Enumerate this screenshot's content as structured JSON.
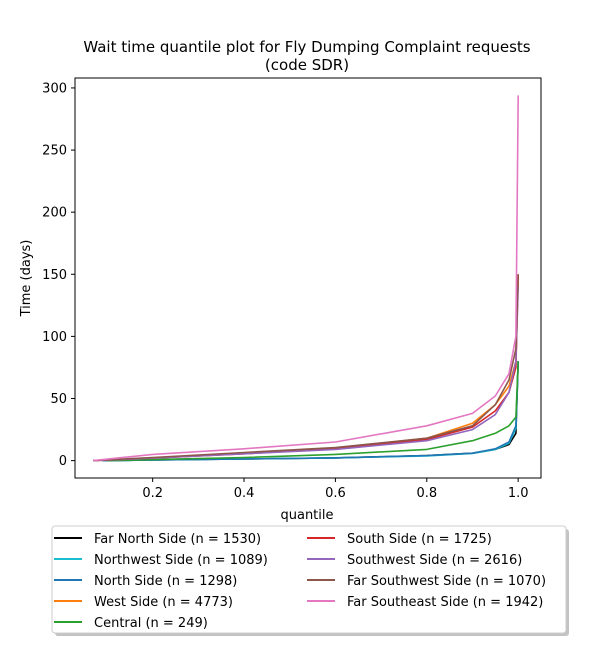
{
  "chart_data": {
    "type": "line",
    "title": "Wait time quantile plot for Fly Dumping Complaint  requests",
    "subtitle": "(code SDR)",
    "xlabel": "quantile",
    "ylabel": "Time (days)",
    "xlim": [
      0.03,
      1.05
    ],
    "ylim": [
      -14,
      308
    ],
    "xticks": [
      "0.2",
      "0.4",
      "0.6",
      "0.8",
      "1.0"
    ],
    "xtick_values": [
      0.2,
      0.4,
      0.6,
      0.8,
      1.0
    ],
    "yticks": [
      "0",
      "50",
      "100",
      "150",
      "200",
      "250",
      "300"
    ],
    "ytick_values": [
      0,
      50,
      100,
      150,
      200,
      250,
      300
    ],
    "grid": false,
    "legend_position": "below",
    "series": [
      {
        "name": "Far North Side (n = 1530)",
        "color": "#000000",
        "x": [
          0.09,
          0.2,
          0.4,
          0.6,
          0.8,
          0.9,
          0.95,
          0.98,
          0.995,
          1.0
        ],
        "y": [
          0,
          0.5,
          1.3,
          2.2,
          4,
          6,
          9,
          13,
          22,
          80
        ]
      },
      {
        "name": "Northwest Side (n = 1089)",
        "color": "#17becf",
        "x": [
          0.09,
          0.2,
          0.4,
          0.6,
          0.8,
          0.9,
          0.95,
          0.98,
          0.995,
          1.0
        ],
        "y": [
          0,
          0.5,
          1.3,
          2.2,
          3.8,
          5.8,
          9,
          14,
          26,
          80
        ]
      },
      {
        "name": "North Side (n = 1298)",
        "color": "#1f77b4",
        "x": [
          0.09,
          0.2,
          0.4,
          0.6,
          0.8,
          0.9,
          0.95,
          0.98,
          0.995,
          1.0
        ],
        "y": [
          0,
          0.5,
          1.3,
          2.3,
          4,
          6,
          9.5,
          15,
          28,
          80
        ]
      },
      {
        "name": "West Side (n = 4773)",
        "color": "#ff7f0e",
        "x": [
          0.07,
          0.2,
          0.4,
          0.6,
          0.8,
          0.9,
          0.95,
          0.98,
          0.995,
          1.0
        ],
        "y": [
          0,
          2,
          6,
          10,
          18,
          30,
          45,
          60,
          80,
          150
        ]
      },
      {
        "name": "Central (n = 249)",
        "color": "#2ca02c",
        "x": [
          0.1,
          0.2,
          0.4,
          0.6,
          0.8,
          0.9,
          0.95,
          0.98,
          0.995,
          1.0
        ],
        "y": [
          0,
          0.8,
          2.5,
          5,
          9,
          16,
          22,
          28,
          35,
          80
        ]
      },
      {
        "name": "South Side (n = 1725)",
        "color": "#d62728",
        "x": [
          0.07,
          0.2,
          0.4,
          0.6,
          0.8,
          0.9,
          0.95,
          0.98,
          0.995,
          1.0
        ],
        "y": [
          0,
          2,
          5.5,
          9.5,
          17,
          27,
          40,
          55,
          75,
          150
        ]
      },
      {
        "name": "Southwest Side (n = 2616)",
        "color": "#9467bd",
        "x": [
          0.07,
          0.2,
          0.4,
          0.6,
          0.8,
          0.9,
          0.95,
          0.98,
          0.995,
          1.0
        ],
        "y": [
          0,
          2,
          5.5,
          9,
          16,
          25,
          37,
          55,
          80,
          140
        ]
      },
      {
        "name": "Far Southwest Side (n = 1070)",
        "color": "#8c564b",
        "x": [
          0.07,
          0.2,
          0.4,
          0.6,
          0.8,
          0.9,
          0.95,
          0.98,
          0.995,
          1.0
        ],
        "y": [
          0,
          2.5,
          6.5,
          10.5,
          18,
          28,
          45,
          65,
          90,
          150
        ]
      },
      {
        "name": "Far Southeast Side (n = 1942)",
        "color": "#e377c2",
        "x": [
          0.07,
          0.2,
          0.4,
          0.6,
          0.8,
          0.9,
          0.95,
          0.98,
          0.995,
          1.0
        ],
        "y": [
          0,
          5,
          9.5,
          15,
          28,
          38,
          52,
          70,
          100,
          294
        ]
      }
    ]
  }
}
